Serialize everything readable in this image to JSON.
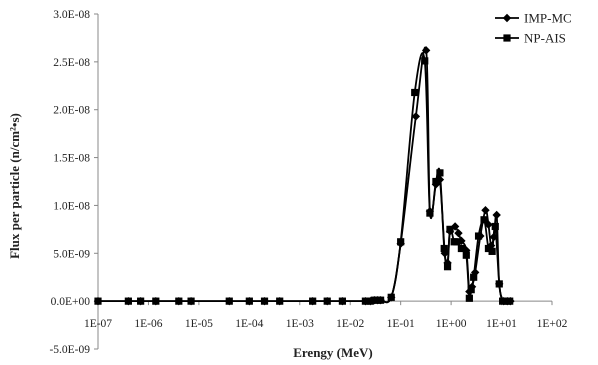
{
  "chart_data": {
    "type": "line",
    "title": "",
    "xlabel": "Erengy (MeV)",
    "ylabel": "Flux per particle (n/cm²•s)",
    "xscale": "log",
    "xlim": [
      1e-07,
      100
    ],
    "ylim": [
      -5e-09,
      3e-08
    ],
    "x_ticks": [
      1e-07,
      1e-06,
      1e-05,
      0.0001,
      0.001,
      0.01,
      0.1,
      1,
      10,
      100
    ],
    "x_tick_labels": [
      "1E-07",
      "1E-06",
      "1E-05",
      "1E-04",
      "1E-03",
      "1E-02",
      "1E-01",
      "1E+00",
      "1E+01",
      "1E+02"
    ],
    "y_ticks": [
      -5e-09,
      0,
      5e-09,
      1e-08,
      1.5e-08,
      2e-08,
      2.5e-08,
      3e-08
    ],
    "y_tick_labels": [
      "-5.0E-09",
      "0.0E+00",
      "5.0E-09",
      "1.0E-08",
      "1.5E-08",
      "2.0E-08",
      "2.5E-08",
      "3.0E-08"
    ],
    "grid": false,
    "legend_position": "top-right",
    "series": [
      {
        "name": "IMP-MC",
        "marker": "diamond",
        "color": "#000000",
        "points": [
          [
            1e-07,
            0
          ],
          [
            4e-07,
            0
          ],
          [
            7e-07,
            0
          ],
          [
            1.4e-06,
            0
          ],
          [
            4e-06,
            0
          ],
          [
            7e-06,
            0
          ],
          [
            4e-05,
            0
          ],
          [
            0.0001,
            0
          ],
          [
            0.0002,
            0
          ],
          [
            0.0004,
            0
          ],
          [
            0.0018,
            0
          ],
          [
            0.0035,
            0
          ],
          [
            0.007,
            0
          ],
          [
            0.02,
            0
          ],
          [
            0.025,
            0
          ],
          [
            0.03,
            1e-10
          ],
          [
            0.035,
            1e-10
          ],
          [
            0.04,
            1e-10
          ],
          [
            0.065,
            4e-10
          ],
          [
            0.1,
            6e-09
          ],
          [
            0.2,
            1.93e-08
          ],
          [
            0.32,
            2.62e-08
          ],
          [
            0.38,
            9.4e-09
          ],
          [
            0.5,
            1.22e-08
          ],
          [
            0.6,
            1.27e-08
          ],
          [
            0.75,
            5e-09
          ],
          [
            0.85,
            4e-09
          ],
          [
            0.95,
            7.3e-09
          ],
          [
            1.2,
            7.8e-09
          ],
          [
            1.4,
            7.1e-09
          ],
          [
            1.6,
            6.3e-09
          ],
          [
            2.0,
            5.3e-09
          ],
          [
            2.3,
            1e-09
          ],
          [
            2.6,
            1.5e-09
          ],
          [
            3.0,
            3e-09
          ],
          [
            3.8,
            6.8e-09
          ],
          [
            4.8,
            9.5e-09
          ],
          [
            5.5,
            8e-09
          ],
          [
            6.2,
            5.8e-09
          ],
          [
            7.0,
            6.7e-09
          ],
          [
            8.0,
            9e-09
          ],
          [
            9.0,
            1.8e-09
          ],
          [
            11,
            0
          ],
          [
            13,
            0
          ],
          [
            15,
            0
          ]
        ]
      },
      {
        "name": "NP-AIS",
        "marker": "square",
        "color": "#000000",
        "points": [
          [
            1e-07,
            0
          ],
          [
            4e-07,
            0
          ],
          [
            7e-07,
            0
          ],
          [
            1.4e-06,
            0
          ],
          [
            4e-06,
            0
          ],
          [
            7e-06,
            0
          ],
          [
            4e-05,
            0
          ],
          [
            0.0001,
            0
          ],
          [
            0.0002,
            0
          ],
          [
            0.0004,
            0
          ],
          [
            0.0018,
            0
          ],
          [
            0.0035,
            0
          ],
          [
            0.007,
            0
          ],
          [
            0.02,
            0
          ],
          [
            0.025,
            0
          ],
          [
            0.03,
            1e-10
          ],
          [
            0.035,
            1e-10
          ],
          [
            0.04,
            1e-10
          ],
          [
            0.065,
            4e-10
          ],
          [
            0.1,
            6.2e-09
          ],
          [
            0.19,
            2.18e-08
          ],
          [
            0.3,
            2.51e-08
          ],
          [
            0.38,
            9.2e-09
          ],
          [
            0.5,
            1.25e-08
          ],
          [
            0.6,
            1.34e-08
          ],
          [
            0.73,
            5.5e-09
          ],
          [
            0.85,
            3.6e-09
          ],
          [
            0.95,
            7.5e-09
          ],
          [
            1.15,
            6.2e-09
          ],
          [
            1.3,
            6.2e-09
          ],
          [
            1.6,
            5.5e-09
          ],
          [
            2.0,
            4.8e-09
          ],
          [
            2.3,
            3e-10
          ],
          [
            2.5,
            1.2e-09
          ],
          [
            2.8,
            2.5e-09
          ],
          [
            3.5,
            6.8e-09
          ],
          [
            4.5,
            8.5e-09
          ],
          [
            5.5,
            5.5e-09
          ],
          [
            6.5,
            5.2e-09
          ],
          [
            7.5,
            7.8e-09
          ],
          [
            9.0,
            1.8e-09
          ],
          [
            10.5,
            0
          ],
          [
            12.5,
            0
          ],
          [
            14.5,
            0
          ]
        ]
      }
    ]
  }
}
